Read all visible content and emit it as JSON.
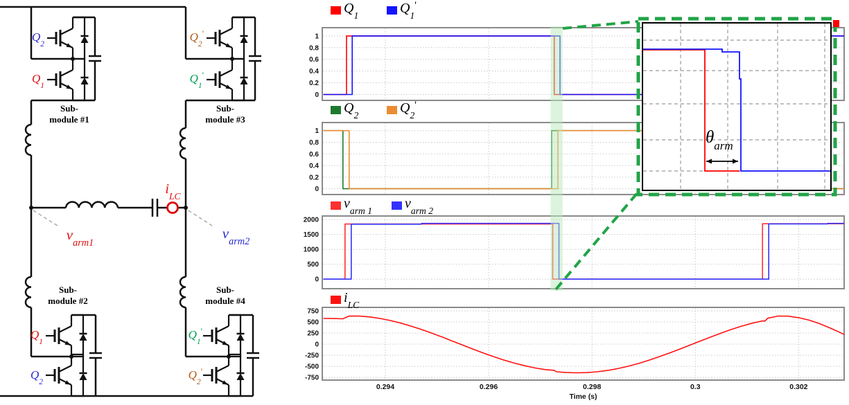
{
  "circuit": {
    "submodules": [
      {
        "caption_line1": "Sub-",
        "caption_line2": "module #1",
        "q_top": {
          "main": "Q",
          "sub": "2",
          "prime": "",
          "color": "#2a2ad0"
        },
        "q_bot": {
          "main": "Q",
          "sub": "1",
          "prime": "",
          "color": "#e01010"
        }
      },
      {
        "caption_line1": "Sub-",
        "caption_line2": "module #2",
        "q_top": {
          "main": "Q",
          "sub": "1",
          "prime": "",
          "color": "#e01010"
        },
        "q_bot": {
          "main": "Q",
          "sub": "2",
          "prime": "",
          "color": "#2a2ad0"
        }
      },
      {
        "caption_line1": "Sub-",
        "caption_line2": "module #3",
        "q_top": {
          "main": "Q",
          "sub": "2",
          "prime": "'",
          "color": "#b35a18"
        },
        "q_bot": {
          "main": "Q",
          "sub": "1",
          "prime": "'",
          "color": "#00a050"
        }
      },
      {
        "caption_line1": "Sub-",
        "caption_line2": "module #4",
        "q_top": {
          "main": "Q",
          "sub": "1",
          "prime": "'",
          "color": "#00a050"
        },
        "q_bot": {
          "main": "Q",
          "sub": "2",
          "prime": "'",
          "color": "#b35a18"
        }
      }
    ],
    "labels": {
      "v_arm1": {
        "main": "v",
        "sub": "arm1",
        "color": "#e01010"
      },
      "v_arm2": {
        "main": "v",
        "sub": "arm2",
        "color": "#2a2ad0"
      },
      "i_lc": {
        "main": "i",
        "sub": "LC",
        "color": "#e01010"
      }
    },
    "probe_color": "#dd0000"
  },
  "inset": {
    "theta": {
      "main": "θ",
      "sub": "arm"
    },
    "border_color": "#21a447"
  },
  "axis": {
    "xlim": [
      0.29278,
      0.30288
    ],
    "xticks": [
      0.294,
      0.296,
      0.298,
      0.3,
      0.302
    ],
    "xtick_labels": [
      "0.294",
      "0.296",
      "0.298",
      "0.3",
      "0.302"
    ],
    "xlabel": "Time (s)"
  },
  "highlight_band": {
    "color": "#b9e8b9",
    "t_start": 0.2972,
    "t_end": 0.29743
  },
  "corner_marker_color": "#ff0000",
  "chart_data": [
    {
      "type": "line",
      "legend": [
        {
          "main": "Q",
          "sub": "1",
          "prime": "",
          "color": "#ff0000"
        },
        {
          "main": "Q",
          "sub": "1",
          "prime": "'",
          "color": "#1414ff"
        }
      ],
      "ylim": [
        -0.1,
        1.14
      ],
      "yticks": [
        0,
        0.2,
        0.4,
        0.6,
        0.8,
        1
      ],
      "ytick_labels": [
        "0",
        "0.2",
        "0.4",
        "0.6",
        "0.8",
        "1"
      ],
      "series": [
        {
          "name": "Q1",
          "color": "#ff0000",
          "points": [
            [
              0.2928,
              0
            ],
            [
              0.29325,
              0
            ],
            [
              0.29325,
              1
            ],
            [
              0.29727,
              1
            ],
            [
              0.29727,
              0
            ],
            [
              0.30133,
              0
            ],
            [
              0.30133,
              1
            ],
            [
              0.30288,
              1
            ]
          ]
        },
        {
          "name": "Q1p",
          "color": "#1414ff",
          "points": [
            [
              0.2928,
              0
            ],
            [
              0.29336,
              0
            ],
            [
              0.29336,
              1
            ],
            [
              0.29738,
              1
            ],
            [
              0.29738,
              0
            ],
            [
              0.30144,
              0
            ],
            [
              0.30144,
              1
            ],
            [
              0.30288,
              1
            ]
          ]
        }
      ]
    },
    {
      "type": "line",
      "legend": [
        {
          "main": "Q",
          "sub": "2",
          "prime": "",
          "color": "#1e7a2e"
        },
        {
          "main": "Q",
          "sub": "2",
          "prime": "'",
          "color": "#eb8c34"
        }
      ],
      "ylim": [
        -0.1,
        1.14
      ],
      "yticks": [
        0,
        0.2,
        0.4,
        0.6,
        0.8,
        1
      ],
      "ytick_labels": [
        "0",
        "0.2",
        "0.4",
        "0.6",
        "0.8",
        "1"
      ],
      "series": [
        {
          "name": "Q2",
          "color": "#1e7a2e",
          "points": [
            [
              0.2928,
              1
            ],
            [
              0.29318,
              1
            ],
            [
              0.29318,
              0
            ],
            [
              0.29722,
              0
            ],
            [
              0.29722,
              1
            ],
            [
              0.30126,
              1
            ],
            [
              0.30126,
              0
            ],
            [
              0.30288,
              0
            ]
          ]
        },
        {
          "name": "Q2p",
          "color": "#eb8c34",
          "points": [
            [
              0.2928,
              1
            ],
            [
              0.2933,
              1
            ],
            [
              0.2933,
              0
            ],
            [
              0.29734,
              0
            ],
            [
              0.29734,
              1
            ],
            [
              0.30138,
              1
            ],
            [
              0.30138,
              0
            ],
            [
              0.30288,
              0
            ]
          ]
        }
      ]
    },
    {
      "type": "line",
      "legend": [
        {
          "main": "v",
          "sub": "arm 1",
          "prime": "",
          "color": "#ff3030"
        },
        {
          "main": "v",
          "sub": "arm 2",
          "prime": "",
          "color": "#3333ff"
        }
      ],
      "ylim": [
        -320,
        2120
      ],
      "yticks": [
        0,
        500,
        1000,
        1500,
        2000
      ],
      "ytick_labels": [
        "0",
        "500",
        "1000",
        "1500",
        "2000"
      ],
      "series": [
        {
          "name": "v_arm1",
          "color": "#ff3030",
          "points": [
            [
              0.2928,
              0
            ],
            [
              0.29322,
              0
            ],
            [
              0.29322,
              1850
            ],
            [
              0.29724,
              1850
            ],
            [
              0.29724,
              0
            ],
            [
              0.3013,
              0
            ],
            [
              0.3013,
              1860
            ],
            [
              0.30288,
              1860
            ]
          ]
        },
        {
          "name": "v_arm2",
          "color": "#3333ff",
          "points": [
            [
              0.2928,
              0
            ],
            [
              0.29334,
              0
            ],
            [
              0.29334,
              1845
            ],
            [
              0.2947,
              1845
            ],
            [
              0.2947,
              1872
            ],
            [
              0.29736,
              1872
            ],
            [
              0.29736,
              0
            ],
            [
              0.30142,
              0
            ],
            [
              0.30142,
              1855
            ],
            [
              0.30256,
              1855
            ],
            [
              0.30256,
              1872
            ],
            [
              0.30288,
              1872
            ]
          ]
        }
      ]
    },
    {
      "type": "line",
      "legend": [
        {
          "main": "i",
          "sub": "LC",
          "prime": "",
          "color": "#ff1111"
        }
      ],
      "ylim": [
        -810,
        830
      ],
      "yticks": [
        -750,
        -500,
        -250,
        0,
        250,
        500,
        750
      ],
      "ytick_labels": [
        "-750",
        "-500",
        "-250",
        "0",
        "250",
        "500",
        "750"
      ],
      "series": [
        {
          "name": "i_LC",
          "color": "#ff1111",
          "points": [
            [
              0.2928,
              580
            ],
            [
              0.293,
              578
            ],
            [
              0.29318,
              572
            ],
            [
              0.29323,
              598
            ],
            [
              0.2933,
              634
            ],
            [
              0.2935,
              633
            ],
            [
              0.2937,
              614
            ],
            [
              0.2939,
              580
            ],
            [
              0.2941,
              533
            ],
            [
              0.2943,
              475
            ],
            [
              0.2945,
              407
            ],
            [
              0.2947,
              331
            ],
            [
              0.2949,
              249
            ],
            [
              0.2951,
              161
            ],
            [
              0.2953,
              70
            ],
            [
              0.2955,
              -22
            ],
            [
              0.2957,
              -113
            ],
            [
              0.2959,
              -201
            ],
            [
              0.2961,
              -284
            ],
            [
              0.2963,
              -360
            ],
            [
              0.2965,
              -428
            ],
            [
              0.2967,
              -487
            ],
            [
              0.2969,
              -536
            ],
            [
              0.2971,
              -574
            ],
            [
              0.29727,
              -590
            ],
            [
              0.29731,
              -622
            ],
            [
              0.2975,
              -639
            ],
            [
              0.2977,
              -646
            ],
            [
              0.2979,
              -641
            ],
            [
              0.2981,
              -623
            ],
            [
              0.2983,
              -593
            ],
            [
              0.2985,
              -551
            ],
            [
              0.2987,
              -498
            ],
            [
              0.2989,
              -435
            ],
            [
              0.2991,
              -363
            ],
            [
              0.2993,
              -284
            ],
            [
              0.2995,
              -199
            ],
            [
              0.2997,
              -110
            ],
            [
              0.2999,
              -19
            ],
            [
              0.3001,
              72
            ],
            [
              0.3003,
              162
            ],
            [
              0.3005,
              250
            ],
            [
              0.3007,
              333
            ],
            [
              0.3009,
              408
            ],
            [
              0.3011,
              474
            ],
            [
              0.3013,
              525
            ],
            [
              0.30135,
              522
            ],
            [
              0.3014,
              585
            ],
            [
              0.3016,
              634
            ],
            [
              0.3018,
              632
            ],
            [
              0.302,
              598
            ],
            [
              0.3022,
              542
            ],
            [
              0.3024,
              464
            ],
            [
              0.3026,
              370
            ],
            [
              0.3028,
              264
            ],
            [
              0.30288,
              218
            ]
          ]
        }
      ]
    }
  ]
}
